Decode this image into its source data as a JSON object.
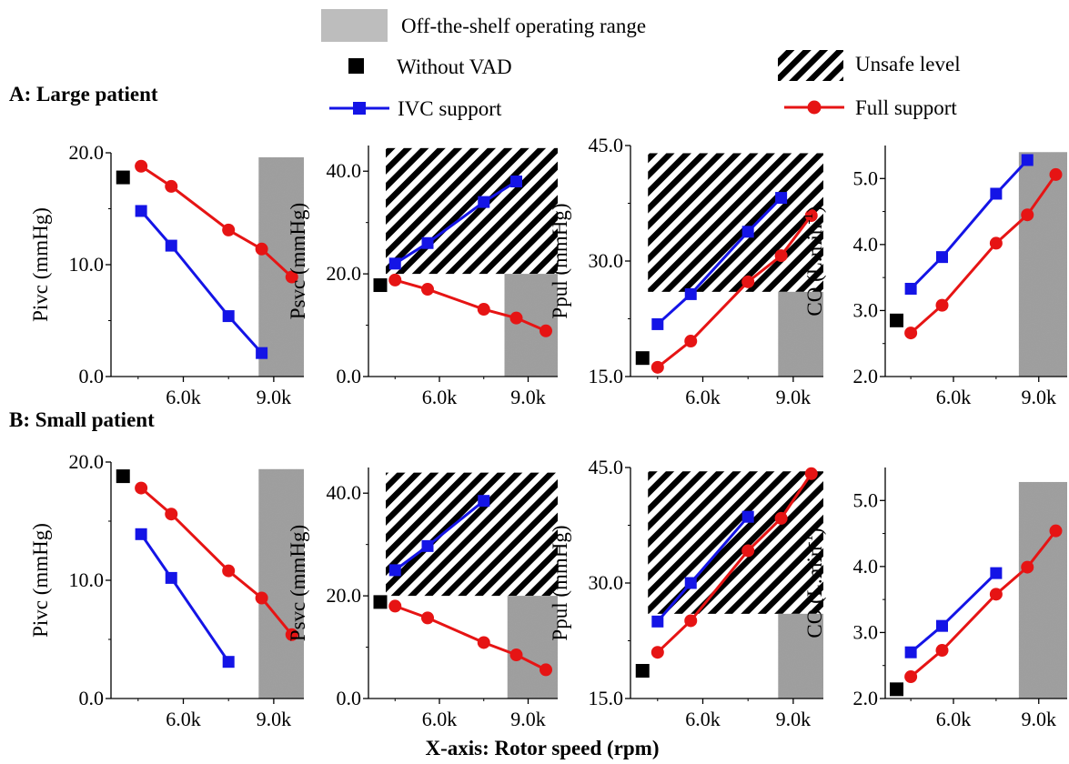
{
  "figure": {
    "legend": {
      "operating_range": "Off-the-shelf operating range",
      "without_vad": "Without VAD",
      "unsafe_level": "Unsafe level",
      "ivc_support": "IVC support",
      "full_support": "Full support"
    },
    "row_titles": [
      "A:  Large patient",
      "B:  Small patient"
    ],
    "xaxis_title": "X-axis: Rotor speed (rpm)"
  },
  "colors": {
    "ivc": "#1414e6",
    "full": "#e61414",
    "baseline": "#000000",
    "operating_range": "#9e9e9e",
    "hatch": "#000000"
  },
  "chart_data": [
    {
      "type": "line",
      "panel": "A-Pivc",
      "ylabel": "Pivc (mmHg)",
      "xlim": [
        3600,
        10000
      ],
      "ylim": [
        0,
        20
      ],
      "yticks": [
        0,
        10,
        20
      ],
      "ytick_labels": [
        "0.0",
        "10.0",
        "20.0"
      ],
      "xticks": [
        6000,
        9000
      ],
      "xtick_labels": [
        "6.0k",
        "9.0k"
      ],
      "operating_range": [
        8500,
        10000
      ],
      "operating_range_top": 19.6,
      "unsafe": null,
      "baseline": {
        "x": 4000,
        "y": 17.8
      },
      "series": [
        {
          "key": "ivc",
          "x": [
            4600,
            5600,
            7500,
            8600
          ],
          "y": [
            14.8,
            11.7,
            5.4,
            2.1
          ]
        },
        {
          "key": "full",
          "x": [
            4600,
            5600,
            7500,
            8600,
            9600
          ],
          "y": [
            18.8,
            17.0,
            13.1,
            11.4,
            8.9
          ]
        }
      ]
    },
    {
      "type": "line",
      "panel": "A-Psvc",
      "ylabel": "Psvc (mmHg)",
      "xlim": [
        3600,
        10000
      ],
      "ylim": [
        0,
        45
      ],
      "yticks": [
        0,
        20,
        40
      ],
      "ytick_labels": [
        "0.0",
        "20.0",
        "40.0"
      ],
      "xticks": [
        6000,
        9000
      ],
      "xtick_labels": [
        "6.0k",
        "9.0k"
      ],
      "operating_range": [
        8200,
        10000
      ],
      "operating_range_top": 20,
      "unsafe": [
        20,
        44.5
      ],
      "baseline": {
        "x": 4000,
        "y": 17.8
      },
      "series": [
        {
          "key": "ivc",
          "x": [
            4500,
            5600,
            7500,
            8600
          ],
          "y": [
            22.0,
            26.0,
            34.0,
            38.0
          ]
        },
        {
          "key": "full",
          "x": [
            4500,
            5600,
            7500,
            8600,
            9600
          ],
          "y": [
            18.8,
            17.0,
            13.1,
            11.4,
            8.9
          ]
        }
      ]
    },
    {
      "type": "line",
      "panel": "A-Ppul",
      "ylabel": "Ppul (mmHg)",
      "xlim": [
        3600,
        10000
      ],
      "ylim": [
        15,
        45
      ],
      "yticks": [
        15,
        30,
        45
      ],
      "ytick_labels": [
        "15.0",
        "30.0",
        "45.0"
      ],
      "xticks": [
        6000,
        9000
      ],
      "xtick_labels": [
        "6.0k",
        "9.0k"
      ],
      "operating_range": [
        8500,
        10000
      ],
      "operating_range_top": 26,
      "unsafe": [
        26,
        44
      ],
      "baseline": {
        "x": 4000,
        "y": 17.4
      },
      "series": [
        {
          "key": "ivc",
          "x": [
            4500,
            5600,
            7500,
            8600
          ],
          "y": [
            21.8,
            25.7,
            33.8,
            38.2
          ]
        },
        {
          "key": "full",
          "x": [
            4500,
            5600,
            7500,
            8600,
            9600
          ],
          "y": [
            16.2,
            19.6,
            27.3,
            30.7,
            35.9
          ]
        }
      ]
    },
    {
      "type": "line",
      "panel": "A-CO",
      "ylabel": "CO (L.min",
      "ylabel_superscript": "-1",
      "ylabel_suffix": ")",
      "xlim": [
        3600,
        10000
      ],
      "ylim": [
        2.0,
        5.5
      ],
      "yticks": [
        2,
        3,
        4,
        5
      ],
      "ytick_labels": [
        "2.0",
        "3.0",
        "4.0",
        "5.0"
      ],
      "xticks": [
        6000,
        9000
      ],
      "xtick_labels": [
        "6.0k",
        "9.0k"
      ],
      "operating_range": [
        8300,
        10000
      ],
      "operating_range_top": 5.4,
      "unsafe": null,
      "baseline": {
        "x": 4000,
        "y": 2.85
      },
      "series": [
        {
          "key": "ivc",
          "x": [
            4500,
            5600,
            7500,
            8600
          ],
          "y": [
            3.33,
            3.81,
            4.77,
            5.28
          ]
        },
        {
          "key": "full",
          "x": [
            4500,
            5600,
            7500,
            8600,
            9600
          ],
          "y": [
            2.66,
            3.08,
            4.02,
            4.45,
            5.06
          ]
        }
      ]
    },
    {
      "type": "line",
      "panel": "B-Pivc",
      "ylabel": "Pivc (mmHg)",
      "xlim": [
        3600,
        10000
      ],
      "ylim": [
        0,
        20
      ],
      "yticks": [
        0,
        10,
        20
      ],
      "ytick_labels": [
        "0.0",
        "10.0",
        "20.0"
      ],
      "xticks": [
        6000,
        9000
      ],
      "xtick_labels": [
        "6.0k",
        "9.0k"
      ],
      "operating_range": [
        8500,
        10000
      ],
      "operating_range_top": 19.4,
      "unsafe": null,
      "baseline": {
        "x": 4000,
        "y": 18.8
      },
      "series": [
        {
          "key": "ivc",
          "x": [
            4600,
            5600,
            7500
          ],
          "y": [
            13.9,
            10.2,
            3.1
          ]
        },
        {
          "key": "full",
          "x": [
            4600,
            5600,
            7500,
            8600,
            9600
          ],
          "y": [
            17.8,
            15.6,
            10.8,
            8.5,
            5.4
          ]
        }
      ]
    },
    {
      "type": "line",
      "panel": "B-Psvc",
      "ylabel": "Psvc (mmHg)",
      "xlim": [
        3600,
        10000
      ],
      "ylim": [
        0,
        45
      ],
      "yticks": [
        0,
        20,
        40
      ],
      "ytick_labels": [
        "0.0",
        "20.0",
        "40.0"
      ],
      "xticks": [
        6000,
        9000
      ],
      "xtick_labels": [
        "6.0k",
        "9.0k"
      ],
      "operating_range": [
        8300,
        10000
      ],
      "operating_range_top": 20,
      "unsafe": [
        20,
        44
      ],
      "baseline": {
        "x": 4000,
        "y": 18.8
      },
      "series": [
        {
          "key": "ivc",
          "x": [
            4500,
            5600,
            7500
          ],
          "y": [
            25.0,
            29.7,
            38.5
          ]
        },
        {
          "key": "full",
          "x": [
            4500,
            5600,
            7500,
            8600,
            9600
          ],
          "y": [
            18.0,
            15.7,
            10.9,
            8.5,
            5.6
          ]
        }
      ]
    },
    {
      "type": "line",
      "panel": "B-Ppul",
      "ylabel": "Ppul (mmHg)",
      "xlim": [
        3600,
        10000
      ],
      "ylim": [
        15,
        45
      ],
      "yticks": [
        15,
        30,
        45
      ],
      "ytick_labels": [
        "15.0",
        "30.0",
        "45.0"
      ],
      "xticks": [
        6000,
        9000
      ],
      "xtick_labels": [
        "6.0k",
        "9.0k"
      ],
      "operating_range": [
        8500,
        10000
      ],
      "operating_range_top": 26,
      "unsafe": [
        26,
        44.5
      ],
      "baseline": {
        "x": 4000,
        "y": 18.6
      },
      "series": [
        {
          "key": "ivc",
          "x": [
            4500,
            5600,
            7500
          ],
          "y": [
            25.0,
            30.0,
            38.6
          ]
        },
        {
          "key": "full",
          "x": [
            4500,
            5600,
            7500,
            8600,
            9600
          ],
          "y": [
            21.0,
            25.1,
            34.2,
            38.4,
            44.2
          ]
        }
      ]
    },
    {
      "type": "line",
      "panel": "B-CO",
      "ylabel": "CO (L.min",
      "ylabel_superscript": "-1",
      "ylabel_suffix": ")",
      "xlim": [
        3600,
        10000
      ],
      "ylim": [
        2.0,
        5.5
      ],
      "yticks": [
        2,
        3,
        4,
        5
      ],
      "ytick_labels": [
        "2.0",
        "3.0",
        "4.0",
        "5.0"
      ],
      "xticks": [
        6000,
        9000
      ],
      "xtick_labels": [
        "6.0k",
        "9.0k"
      ],
      "operating_range": [
        8300,
        10000
      ],
      "operating_range_top": 5.28,
      "unsafe": null,
      "baseline": {
        "x": 4000,
        "y": 2.14
      },
      "series": [
        {
          "key": "ivc",
          "x": [
            4500,
            5600,
            7500
          ],
          "y": [
            2.7,
            3.1,
            3.9
          ]
        },
        {
          "key": "full",
          "x": [
            4500,
            5600,
            7500,
            8600,
            9600
          ],
          "y": [
            2.33,
            2.73,
            3.58,
            3.99,
            4.54
          ]
        }
      ]
    }
  ]
}
